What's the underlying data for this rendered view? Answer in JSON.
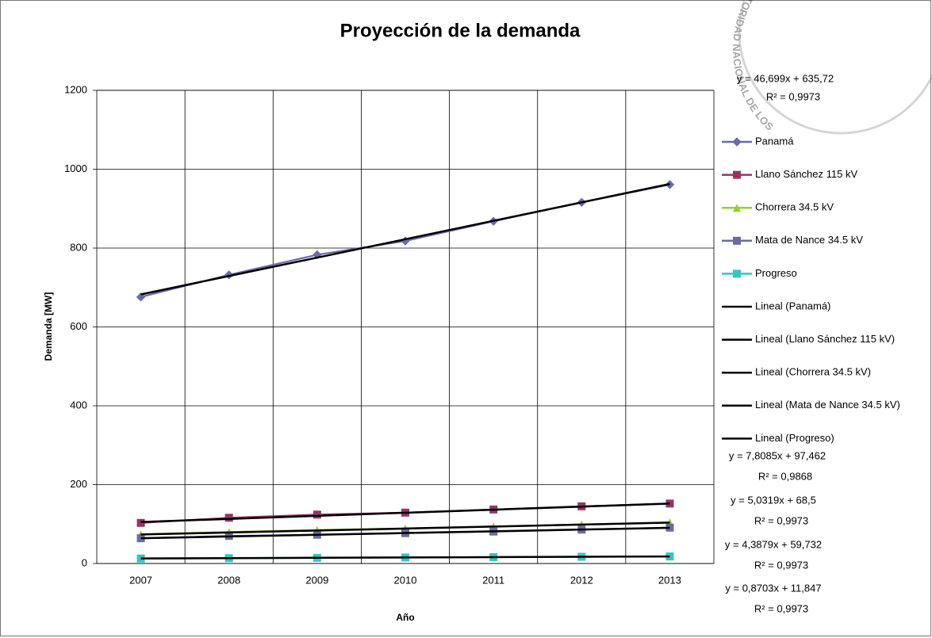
{
  "chart_data": {
    "type": "line",
    "title": "Proyección de la demanda",
    "x_label": "Año",
    "y_label": "Demanda [MW]",
    "categories": [
      "2007",
      "2008",
      "2009",
      "2010",
      "2011",
      "2012",
      "2013"
    ],
    "ylim": [
      0,
      1200
    ],
    "yticks": [
      0,
      200,
      400,
      600,
      800,
      1000,
      1200
    ],
    "grid": true,
    "legend": "right",
    "series": [
      {
        "name": "Panamá",
        "color": "#6a6aa8",
        "marker": "diamond",
        "values": [
          676,
          732,
          783,
          818,
          868,
          916,
          961
        ]
      },
      {
        "name": "Llano Sánchez 115 kV",
        "color": "#953563",
        "marker": "square",
        "values": [
          103,
          116,
          124,
          129,
          137,
          145,
          152
        ]
      },
      {
        "name": "Chorrera 34.5 kV",
        "color": "#9acd32",
        "marker": "triangle",
        "values": [
          74,
          80,
          85,
          89,
          94,
          99,
          104
        ]
      },
      {
        "name": "Mata de Nance 34.5 kV",
        "color": "#6b6b9c",
        "marker": "square",
        "values": [
          64,
          70,
          73,
          77,
          81,
          86,
          91
        ]
      },
      {
        "name": "Progreso",
        "color": "#33c6c6",
        "marker": "square",
        "values": [
          12.7,
          13.6,
          14.4,
          15.3,
          16.2,
          17.1,
          17.9
        ]
      },
      {
        "name": "Lineal (Panamá)",
        "color": "#000000",
        "marker": "none",
        "values": [
          682.4,
          729.1,
          775.8,
          822.5,
          869.2,
          915.9,
          962.6
        ]
      },
      {
        "name": "Lineal (Llano Sánchez 115 kV)",
        "color": "#000000",
        "marker": "none",
        "values": [
          105.3,
          113.1,
          120.9,
          128.7,
          136.5,
          144.3,
          152.1
        ]
      },
      {
        "name": "Lineal (Chorrera 34.5 kV)",
        "color": "#000000",
        "marker": "none",
        "values": [
          73.5,
          78.6,
          83.6,
          88.6,
          93.7,
          98.7,
          103.7
        ]
      },
      {
        "name": "Lineal (Mata de Nance 34.5 kV)",
        "color": "#000000",
        "marker": "none",
        "values": [
          64.1,
          68.5,
          72.9,
          77.3,
          81.7,
          86.1,
          90.4
        ]
      },
      {
        "name": "Lineal (Progreso)",
        "color": "#000000",
        "marker": "none",
        "values": [
          12.7,
          13.6,
          14.5,
          15.3,
          16.2,
          17.1,
          17.9
        ]
      }
    ],
    "annotations": [
      {
        "equation": "y = 46,699x + 635,72",
        "r2": "R² = 0,9973"
      },
      {
        "equation": "y = 7,8085x + 97,462",
        "r2": "R² = 0,9868"
      },
      {
        "equation": "y = 5,0319x + 68,5",
        "r2": "R² = 0,9973"
      },
      {
        "equation": "y = 4,3879x + 59,732",
        "r2": "R² = 0,9973"
      },
      {
        "equation": "y = 0,8703x + 11,847",
        "r2": "R² = 0,9973"
      }
    ],
    "stamp_text": "AUTORIDAD NACIONAL DE LOS"
  }
}
